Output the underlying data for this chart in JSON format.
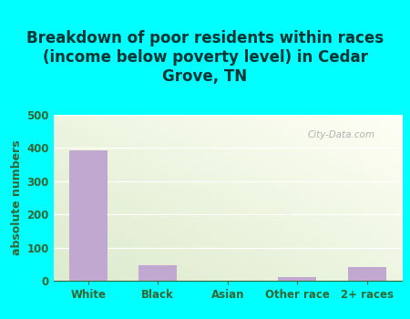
{
  "title": "Breakdown of poor residents within races\n(income below poverty level) in Cedar\nGrove, TN",
  "categories": [
    "White",
    "Black",
    "Asian",
    "Other race",
    "2+ races"
  ],
  "values": [
    393,
    46,
    0,
    12,
    42
  ],
  "bar_color": "#c0a8d0",
  "ylabel": "absolute numbers",
  "ylim": [
    0,
    500
  ],
  "yticks": [
    0,
    100,
    200,
    300,
    400,
    500
  ],
  "background_outer": "#00ffff",
  "title_color": "#003333",
  "axis_label_color": "#336633",
  "tick_color": "#336633",
  "watermark": "City-Data.com",
  "title_fontsize": 12,
  "ylabel_fontsize": 9,
  "tick_fontsize": 8.5
}
